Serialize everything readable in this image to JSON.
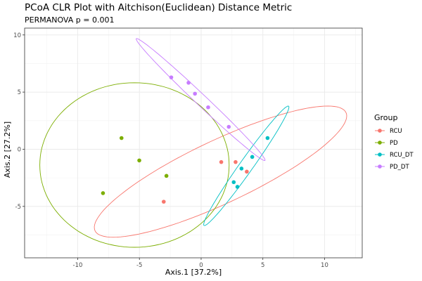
{
  "chart_data": {
    "type": "scatter",
    "title": "PCoA CLR Plot with Aitchison(Euclidean) Distance Metric",
    "subtitle": "PERMANOVA p = 0.001",
    "xlabel": "Axis.1   [37.2%]",
    "ylabel": "Axis.2   [27.2%]",
    "xlim": [
      -14.3,
      13.05
    ],
    "ylim": [
      -9.5,
      10.6
    ],
    "xticks": [
      -10,
      -5,
      0,
      5,
      10
    ],
    "yticks": [
      -5,
      0,
      5,
      10
    ],
    "grid": true,
    "legend": {
      "title": "Group",
      "position": "right"
    },
    "series": [
      {
        "name": "RCU",
        "color": "#F8766D",
        "points": [
          [
            1.63,
            -1.12
          ],
          [
            2.79,
            -1.12
          ],
          [
            3.7,
            -1.96
          ],
          [
            -3.03,
            -4.59
          ]
        ],
        "ellipse": {
          "center": [
            1.57,
            -1.96
          ],
          "a": [
            10.13,
            5.24
          ],
          "b": [
            1.38,
            -2.34
          ]
        }
      },
      {
        "name": "PD",
        "color": "#7CAE00",
        "points": [
          [
            -6.45,
            0.98
          ],
          [
            -5.01,
            -0.98
          ],
          [
            -2.81,
            -2.33
          ],
          [
            -7.95,
            -3.84
          ]
        ],
        "ellipse": {
          "center": [
            -5.4,
            -1.38
          ],
          "a": [
            7.67,
            0.0
          ],
          "b": [
            0.0,
            7.2
          ]
        }
      },
      {
        "name": "RCU_DT",
        "color": "#00BFC4",
        "points": [
          [
            5.38,
            0.98
          ],
          [
            4.14,
            -0.67
          ],
          [
            3.27,
            -1.69
          ],
          [
            2.64,
            -2.88
          ],
          [
            2.94,
            -3.29
          ]
        ],
        "ellipse": {
          "center": [
            3.66,
            -1.45
          ],
          "a": [
            3.42,
            5.22
          ],
          "b": [
            0.475,
            -0.27
          ]
        }
      },
      {
        "name": "PD_DT",
        "color": "#C77CFF",
        "points": [
          [
            -2.42,
            6.29
          ],
          [
            -1.02,
            5.82
          ],
          [
            -0.5,
            4.86
          ],
          [
            0.57,
            3.67
          ],
          [
            2.24,
            1.96
          ]
        ],
        "ellipse": {
          "center": [
            -0.04,
            4.35
          ],
          "a": [
            5.21,
            -5.33
          ],
          "b": [
            0.35,
            0.3
          ]
        }
      }
    ]
  }
}
